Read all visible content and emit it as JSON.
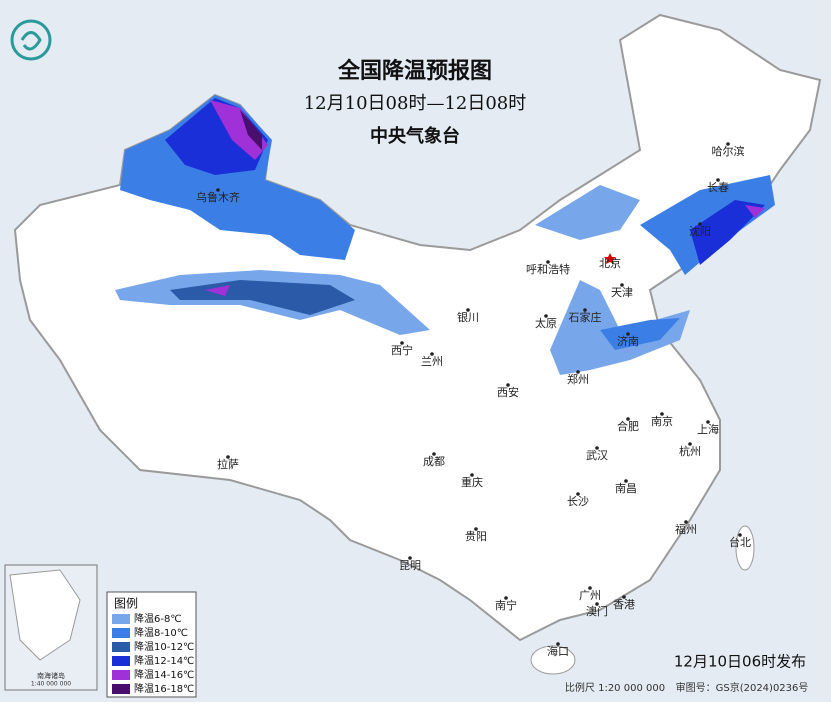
{
  "header": {
    "title": "全国降温预报图",
    "period": "12月10日08时—12日08时",
    "issuer": "中央气象台"
  },
  "cities": [
    "哈尔滨",
    "长春",
    "沈阳",
    "乌鲁木齐",
    "呼和浩特",
    "北京",
    "天津",
    "银川",
    "太原",
    "石家庄",
    "济南",
    "西宁",
    "兰州",
    "郑州",
    "西安",
    "合肥",
    "南京",
    "上海",
    "拉萨",
    "成都",
    "武汉",
    "杭州",
    "重庆",
    "长沙",
    "南昌",
    "贵阳",
    "福州",
    "台北",
    "昆明",
    "南宁",
    "广州",
    "澳门",
    "香港",
    "海口"
  ],
  "legend": {
    "title": "图例",
    "items": [
      {
        "label": "降温6-8℃",
        "color": "#78a6ea"
      },
      {
        "label": "降温8-10℃",
        "color": "#3b7fe6"
      },
      {
        "label": "降温10-12℃",
        "color": "#2a5aa8"
      },
      {
        "label": "降温12-14℃",
        "color": "#1b2fd8"
      },
      {
        "label": "降温14-16℃",
        "color": "#a030d8"
      },
      {
        "label": "降温16-18℃",
        "color": "#4a0f6e"
      }
    ]
  },
  "inset": {
    "title": "南海诸岛",
    "scale": "1:40 000 000"
  },
  "footer": {
    "issued": "12月10日06时发布",
    "scale": "比例尺 1:20 000 000",
    "approval": "审图号：GS京(2024)0236号"
  }
}
